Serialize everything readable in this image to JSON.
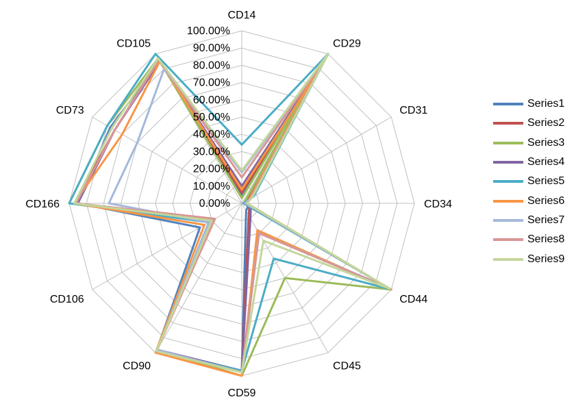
{
  "chart_data": {
    "type": "radar",
    "title": "",
    "axes": [
      "CD14",
      "CD29",
      "CD31",
      "CD34",
      "CD44",
      "CD45",
      "CD59",
      "CD90",
      "CD106",
      "CD166",
      "CD73",
      "CD105"
    ],
    "radial_ticks": [
      "0.00%",
      "10.00%",
      "20.00%",
      "30.00%",
      "40.00%",
      "50.00%",
      "60.00%",
      "70.00%",
      "80.00%",
      "90.00%",
      "100.00%"
    ],
    "rlim": [
      0,
      100
    ],
    "grid": true,
    "legend_position": "right",
    "series": [
      {
        "name": "Series1",
        "color": "#4F81BD",
        "values": [
          5,
          100,
          3,
          2,
          4,
          5,
          97,
          99,
          28,
          95,
          88,
          95
        ]
      },
      {
        "name": "Series2",
        "color": "#C0504D",
        "values": [
          6,
          92,
          4,
          2,
          5,
          8,
          97,
          99,
          18,
          97,
          85,
          96
        ]
      },
      {
        "name": "Series3",
        "color": "#9BBB59",
        "values": [
          3,
          100,
          2,
          1,
          100,
          50,
          100,
          98,
          20,
          100,
          90,
          97
        ]
      },
      {
        "name": "Series4",
        "color": "#8064A2",
        "values": [
          10,
          95,
          5,
          2,
          6,
          10,
          97,
          98,
          22,
          95,
          85,
          95
        ]
      },
      {
        "name": "Series5",
        "color": "#4BACC6",
        "values": [
          34,
          100,
          8,
          1,
          100,
          37,
          97,
          99,
          22,
          100,
          90,
          100
        ]
      },
      {
        "name": "Series6",
        "color": "#F79646",
        "values": [
          8,
          88,
          5,
          3,
          100,
          18,
          100,
          100,
          25,
          97,
          80,
          95
        ]
      },
      {
        "name": "Series7",
        "color": "#A5B8DA",
        "values": [
          18,
          97,
          6,
          2,
          96,
          20,
          98,
          98,
          22,
          77,
          70,
          90
        ]
      },
      {
        "name": "Series8",
        "color": "#D99694",
        "values": [
          15,
          96,
          6,
          3,
          98,
          20,
          98,
          99,
          18,
          96,
          85,
          96
        ]
      },
      {
        "name": "Series9",
        "color": "#C3D69B",
        "values": [
          19,
          100,
          7,
          3,
          99,
          25,
          98,
          99,
          20,
          97,
          87,
          97
        ]
      }
    ]
  }
}
